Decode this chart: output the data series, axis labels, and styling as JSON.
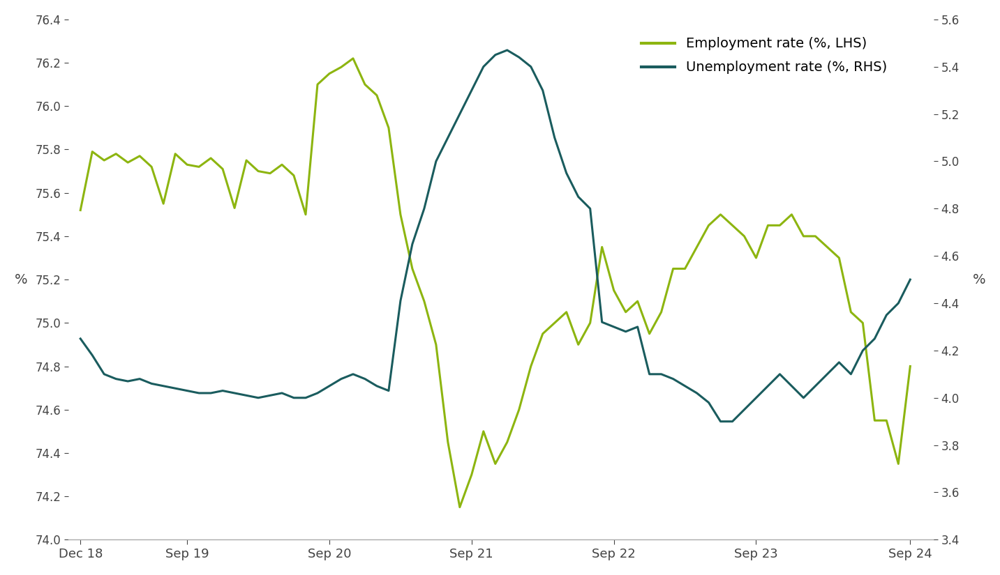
{
  "employment_x": [
    0,
    1,
    2,
    3,
    4,
    5,
    6,
    7,
    8,
    9,
    10,
    11,
    12,
    13,
    14,
    15,
    16,
    17,
    18,
    19,
    20,
    21,
    22,
    23,
    24,
    25,
    26,
    27,
    28,
    29,
    30,
    31,
    32,
    33,
    34,
    35,
    36,
    37,
    38,
    39,
    40,
    41,
    42,
    43,
    44,
    45,
    46,
    47,
    48,
    49,
    50,
    51,
    52,
    53,
    54,
    55,
    56,
    57,
    58,
    59,
    60,
    61,
    62,
    63,
    64,
    65,
    66,
    67,
    68,
    69,
    70
  ],
  "employment_y": [
    75.52,
    75.79,
    75.75,
    75.78,
    75.74,
    75.77,
    75.72,
    75.55,
    75.78,
    75.73,
    75.72,
    75.76,
    75.71,
    75.53,
    75.75,
    75.7,
    75.69,
    75.73,
    75.68,
    75.5,
    76.1,
    76.15,
    76.18,
    76.22,
    76.1,
    76.05,
    75.9,
    75.5,
    75.25,
    75.1,
    74.9,
    74.45,
    74.15,
    74.3,
    74.5,
    74.35,
    74.45,
    74.6,
    74.8,
    74.95,
    75.0,
    75.05,
    74.9,
    75.0,
    75.35,
    75.15,
    75.05,
    75.1,
    74.95,
    75.05,
    75.25,
    75.25,
    75.35,
    75.45,
    75.5,
    75.45,
    75.4,
    75.3,
    75.45,
    75.45,
    75.5,
    75.4,
    75.4,
    75.35,
    75.3,
    75.05,
    75.0,
    74.55,
    74.55,
    74.35,
    74.8
  ],
  "unemployment_x": [
    0,
    1,
    2,
    3,
    4,
    5,
    6,
    7,
    8,
    9,
    10,
    11,
    12,
    13,
    14,
    15,
    16,
    17,
    18,
    19,
    20,
    21,
    22,
    23,
    24,
    25,
    26,
    27,
    28,
    29,
    30,
    31,
    32,
    33,
    34,
    35,
    36,
    37,
    38,
    39,
    40,
    41,
    42,
    43,
    44,
    45,
    46,
    47,
    48,
    49,
    50,
    51,
    52,
    53,
    54,
    55,
    56,
    57,
    58,
    59,
    60,
    61,
    62,
    63,
    64,
    65,
    66,
    67,
    68,
    69,
    70
  ],
  "unemployment_y": [
    4.25,
    4.18,
    4.1,
    4.08,
    4.07,
    4.08,
    4.06,
    4.05,
    4.04,
    4.03,
    4.02,
    4.02,
    4.03,
    4.02,
    4.01,
    4.0,
    4.01,
    4.02,
    4.0,
    4.0,
    4.02,
    4.05,
    4.08,
    4.1,
    4.08,
    4.05,
    4.03,
    4.41,
    4.65,
    4.8,
    5.0,
    5.1,
    5.2,
    5.3,
    5.4,
    5.45,
    5.47,
    5.44,
    5.4,
    5.3,
    5.1,
    4.95,
    4.85,
    4.8,
    4.32,
    4.3,
    4.28,
    4.3,
    4.1,
    4.1,
    4.08,
    4.05,
    4.02,
    3.98,
    3.9,
    3.9,
    3.95,
    4.0,
    4.05,
    4.1,
    4.05,
    4.0,
    4.05,
    4.1,
    4.15,
    4.1,
    4.2,
    4.25,
    4.35,
    4.4,
    4.5
  ],
  "ylim_left": [
    74.0,
    76.4
  ],
  "ylim_right": [
    3.4,
    5.6
  ],
  "yticks_left": [
    74.0,
    74.2,
    74.4,
    74.6,
    74.8,
    75.0,
    75.2,
    75.4,
    75.6,
    75.8,
    76.0,
    76.2,
    76.4
  ],
  "yticks_right": [
    3.4,
    3.6,
    3.8,
    4.0,
    4.2,
    4.4,
    4.6,
    4.8,
    5.0,
    5.2,
    5.4,
    5.6
  ],
  "xtick_positions": [
    0,
    9,
    21,
    33,
    45,
    57,
    70
  ],
  "xtick_labels": [
    "Dec 18",
    "Sep 19",
    "Sep 20",
    "Sep 21",
    "Sep 22",
    "Sep 23",
    "Sep 24"
  ],
  "employment_color": "#8db510",
  "unemployment_color": "#1a5c5e",
  "ylabel_left": "%",
  "ylabel_right": "%",
  "legend_employment": "Employment rate (%, LHS)",
  "legend_unemployment": "Unemployment rate (%, RHS)",
  "line_width": 2.2,
  "background_color": "#ffffff"
}
